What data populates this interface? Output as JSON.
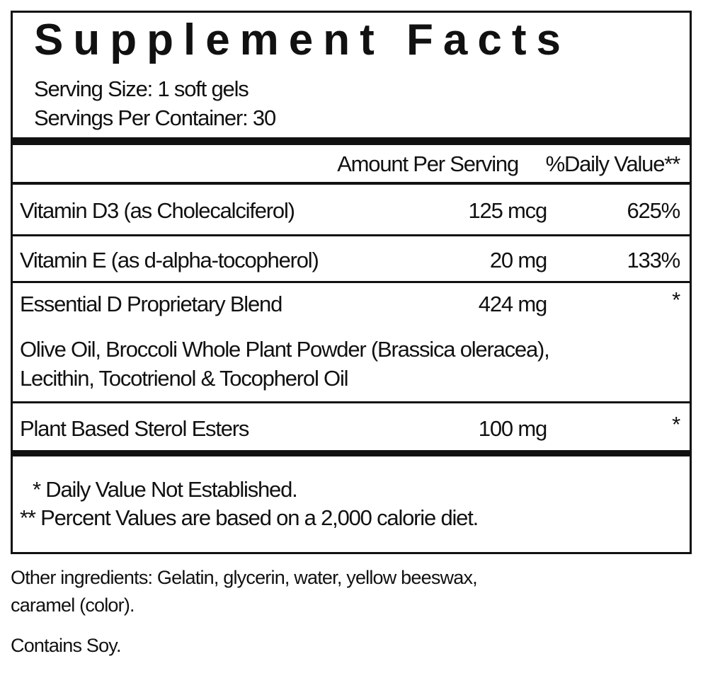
{
  "panel": {
    "title": "Supplement Facts",
    "serving_size": "Serving Size: 1 soft gels",
    "servings_per_container": "Servings Per Container: 30",
    "header": {
      "amount": "Amount Per Serving",
      "daily_value": "%Daily Value**"
    },
    "rows": [
      {
        "name": "Vitamin D3 (as Cholecalciferol)",
        "amount": "125 mcg",
        "daily_value": "625%"
      },
      {
        "name": "Vitamin E (as d-alpha-tocopherol)",
        "amount": "20 mg",
        "daily_value": "133%"
      },
      {
        "name": "Essential D Proprietary Blend",
        "amount": "424 mg",
        "daily_value": "*",
        "description": [
          "Olive Oil, Broccoli Whole Plant Powder (Brassica oleracea),",
          "Lecithin, Tocotrienol & Tocopherol Oil"
        ]
      },
      {
        "name": "Plant Based Sterol Esters",
        "amount": "100 mg",
        "daily_value": "*"
      }
    ],
    "footnotes": [
      "* Daily Value Not Established.",
      "** Percent Values are based on a 2,000 calorie diet."
    ]
  },
  "other_ingredients": [
    "Other ingredients: Gelatin, glycerin, water, yellow beeswax,",
    "caramel (color)."
  ],
  "contains": "Contains Soy."
}
